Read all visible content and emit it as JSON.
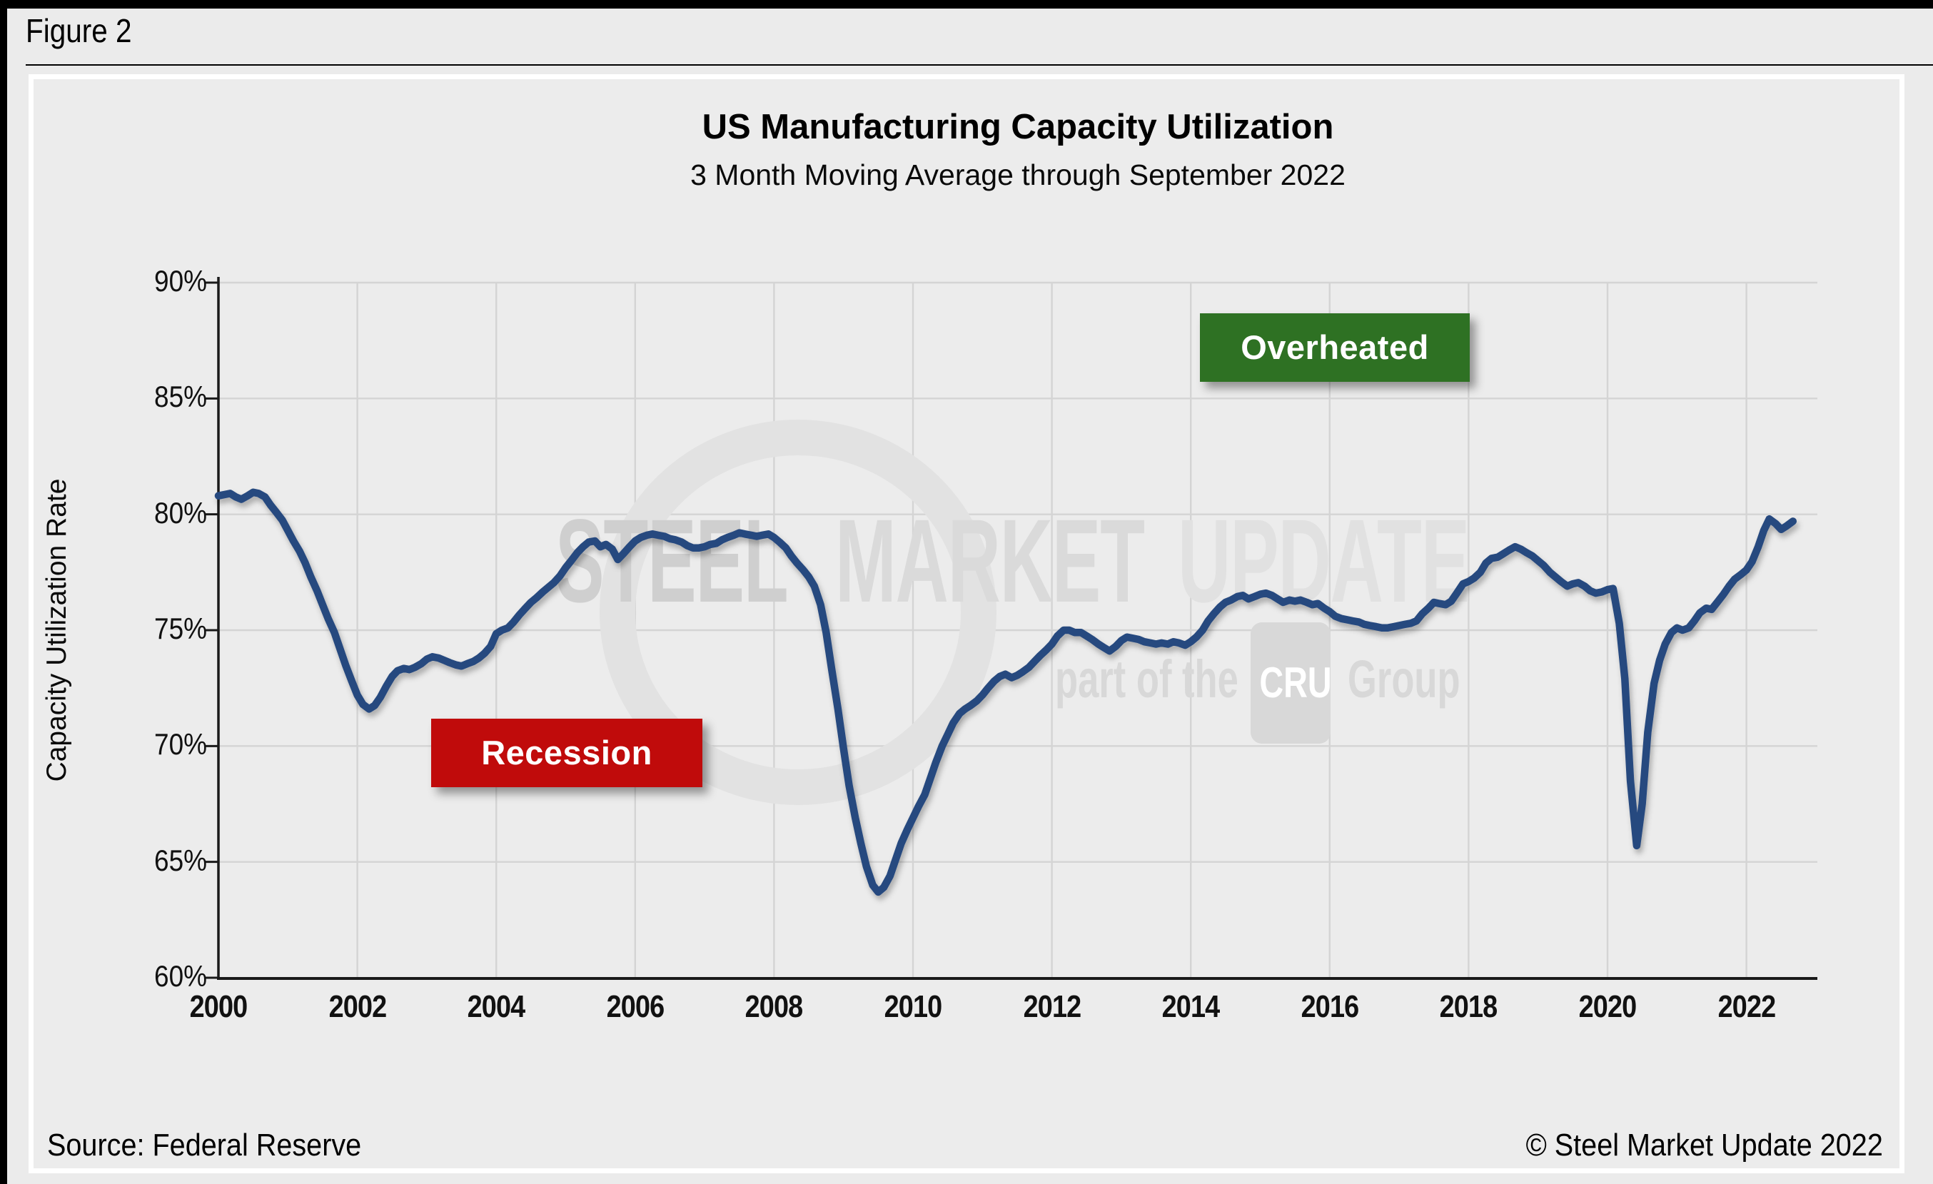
{
  "figure": {
    "label": "Figure 2"
  },
  "chart_data": {
    "type": "line",
    "title": "US Manufacturing Capacity Utilization",
    "subtitle": "3 Month Moving Average through September 2022",
    "ylabel": "Capacity Utilization Rate",
    "xlabel": "",
    "ylim": [
      60,
      90
    ],
    "xlim": [
      2000,
      2022.95
    ],
    "grid": true,
    "legend_position": "none",
    "y_ticks": [
      {
        "v": 90,
        "label": "90%"
      },
      {
        "v": 85,
        "label": "85%"
      },
      {
        "v": 80,
        "label": "80%"
      },
      {
        "v": 75,
        "label": "75%"
      },
      {
        "v": 70,
        "label": "70%"
      },
      {
        "v": 65,
        "label": "65%"
      },
      {
        "v": 60,
        "label": "60%"
      }
    ],
    "x_ticks": [
      2000,
      2002,
      2004,
      2006,
      2008,
      2010,
      2012,
      2014,
      2016,
      2018,
      2020,
      2022
    ],
    "reference_lines": [
      {
        "label": "Overheated",
        "value": 85.0,
        "color": "#2e7123"
      },
      {
        "label": "Recession",
        "value": 72.6,
        "color": "#c00b0b"
      }
    ],
    "series": [
      {
        "name": "3 Month Moving Average",
        "color": "#28497f",
        "points": [
          [
            2000.0,
            80.8
          ],
          [
            2000.08,
            80.85
          ],
          [
            2000.17,
            80.9
          ],
          [
            2000.25,
            80.75
          ],
          [
            2000.33,
            80.65
          ],
          [
            2000.42,
            80.8
          ],
          [
            2000.5,
            80.95
          ],
          [
            2000.58,
            80.9
          ],
          [
            2000.67,
            80.75
          ],
          [
            2000.75,
            80.4
          ],
          [
            2000.83,
            80.1
          ],
          [
            2000.92,
            79.75
          ],
          [
            2001.0,
            79.3
          ],
          [
            2001.08,
            78.85
          ],
          [
            2001.17,
            78.4
          ],
          [
            2001.25,
            77.9
          ],
          [
            2001.33,
            77.3
          ],
          [
            2001.42,
            76.7
          ],
          [
            2001.5,
            76.1
          ],
          [
            2001.58,
            75.5
          ],
          [
            2001.67,
            74.9
          ],
          [
            2001.75,
            74.2
          ],
          [
            2001.83,
            73.5
          ],
          [
            2001.92,
            72.8
          ],
          [
            2002.0,
            72.2
          ],
          [
            2002.08,
            71.8
          ],
          [
            2002.17,
            71.6
          ],
          [
            2002.25,
            71.75
          ],
          [
            2002.33,
            72.1
          ],
          [
            2002.42,
            72.6
          ],
          [
            2002.5,
            73.0
          ],
          [
            2002.58,
            73.25
          ],
          [
            2002.67,
            73.35
          ],
          [
            2002.75,
            73.3
          ],
          [
            2002.83,
            73.4
          ],
          [
            2002.92,
            73.55
          ],
          [
            2003.0,
            73.75
          ],
          [
            2003.08,
            73.85
          ],
          [
            2003.17,
            73.8
          ],
          [
            2003.25,
            73.7
          ],
          [
            2003.33,
            73.6
          ],
          [
            2003.42,
            73.5
          ],
          [
            2003.5,
            73.45
          ],
          [
            2003.58,
            73.55
          ],
          [
            2003.67,
            73.65
          ],
          [
            2003.75,
            73.8
          ],
          [
            2003.83,
            74.0
          ],
          [
            2003.92,
            74.3
          ],
          [
            2004.0,
            74.85
          ],
          [
            2004.08,
            75.0
          ],
          [
            2004.17,
            75.1
          ],
          [
            2004.25,
            75.35
          ],
          [
            2004.33,
            75.65
          ],
          [
            2004.42,
            75.95
          ],
          [
            2004.5,
            76.2
          ],
          [
            2004.58,
            76.4
          ],
          [
            2004.67,
            76.65
          ],
          [
            2004.75,
            76.85
          ],
          [
            2004.83,
            77.05
          ],
          [
            2004.92,
            77.35
          ],
          [
            2005.0,
            77.7
          ],
          [
            2005.08,
            78.0
          ],
          [
            2005.17,
            78.35
          ],
          [
            2005.25,
            78.6
          ],
          [
            2005.33,
            78.8
          ],
          [
            2005.42,
            78.85
          ],
          [
            2005.5,
            78.6
          ],
          [
            2005.58,
            78.7
          ],
          [
            2005.67,
            78.5
          ],
          [
            2005.75,
            78.05
          ],
          [
            2005.83,
            78.3
          ],
          [
            2005.92,
            78.6
          ],
          [
            2006.0,
            78.85
          ],
          [
            2006.08,
            79.0
          ],
          [
            2006.17,
            79.1
          ],
          [
            2006.25,
            79.15
          ],
          [
            2006.33,
            79.1
          ],
          [
            2006.42,
            79.05
          ],
          [
            2006.5,
            78.95
          ],
          [
            2006.58,
            78.9
          ],
          [
            2006.67,
            78.8
          ],
          [
            2006.75,
            78.65
          ],
          [
            2006.83,
            78.55
          ],
          [
            2006.92,
            78.55
          ],
          [
            2007.0,
            78.6
          ],
          [
            2007.08,
            78.7
          ],
          [
            2007.17,
            78.75
          ],
          [
            2007.25,
            78.9
          ],
          [
            2007.33,
            79.0
          ],
          [
            2007.42,
            79.1
          ],
          [
            2007.5,
            79.2
          ],
          [
            2007.58,
            79.15
          ],
          [
            2007.67,
            79.1
          ],
          [
            2007.75,
            79.05
          ],
          [
            2007.83,
            79.1
          ],
          [
            2007.92,
            79.15
          ],
          [
            2008.0,
            79.0
          ],
          [
            2008.08,
            78.8
          ],
          [
            2008.17,
            78.55
          ],
          [
            2008.25,
            78.2
          ],
          [
            2008.33,
            77.9
          ],
          [
            2008.42,
            77.6
          ],
          [
            2008.5,
            77.3
          ],
          [
            2008.58,
            76.9
          ],
          [
            2008.67,
            76.1
          ],
          [
            2008.75,
            74.9
          ],
          [
            2008.83,
            73.3
          ],
          [
            2008.92,
            71.6
          ],
          [
            2009.0,
            69.9
          ],
          [
            2009.08,
            68.3
          ],
          [
            2009.17,
            66.9
          ],
          [
            2009.25,
            65.8
          ],
          [
            2009.33,
            64.8
          ],
          [
            2009.42,
            64.0
          ],
          [
            2009.5,
            63.7
          ],
          [
            2009.58,
            63.9
          ],
          [
            2009.67,
            64.4
          ],
          [
            2009.75,
            65.1
          ],
          [
            2009.83,
            65.8
          ],
          [
            2009.92,
            66.4
          ],
          [
            2010.0,
            66.9
          ],
          [
            2010.08,
            67.4
          ],
          [
            2010.17,
            67.9
          ],
          [
            2010.25,
            68.6
          ],
          [
            2010.33,
            69.3
          ],
          [
            2010.42,
            70.0
          ],
          [
            2010.5,
            70.5
          ],
          [
            2010.58,
            71.0
          ],
          [
            2010.67,
            71.4
          ],
          [
            2010.75,
            71.6
          ],
          [
            2010.83,
            71.75
          ],
          [
            2010.92,
            71.95
          ],
          [
            2011.0,
            72.2
          ],
          [
            2011.08,
            72.5
          ],
          [
            2011.17,
            72.8
          ],
          [
            2011.25,
            73.0
          ],
          [
            2011.33,
            73.1
          ],
          [
            2011.42,
            72.95
          ],
          [
            2011.5,
            73.05
          ],
          [
            2011.58,
            73.2
          ],
          [
            2011.67,
            73.4
          ],
          [
            2011.75,
            73.65
          ],
          [
            2011.83,
            73.9
          ],
          [
            2011.92,
            74.15
          ],
          [
            2012.0,
            74.4
          ],
          [
            2012.08,
            74.75
          ],
          [
            2012.17,
            75.0
          ],
          [
            2012.25,
            75.0
          ],
          [
            2012.33,
            74.9
          ],
          [
            2012.42,
            74.9
          ],
          [
            2012.5,
            74.75
          ],
          [
            2012.58,
            74.6
          ],
          [
            2012.67,
            74.4
          ],
          [
            2012.75,
            74.25
          ],
          [
            2012.83,
            74.1
          ],
          [
            2012.92,
            74.3
          ],
          [
            2013.0,
            74.55
          ],
          [
            2013.08,
            74.7
          ],
          [
            2013.17,
            74.65
          ],
          [
            2013.25,
            74.6
          ],
          [
            2013.33,
            74.5
          ],
          [
            2013.42,
            74.45
          ],
          [
            2013.5,
            74.4
          ],
          [
            2013.58,
            74.45
          ],
          [
            2013.67,
            74.4
          ],
          [
            2013.75,
            74.5
          ],
          [
            2013.83,
            74.45
          ],
          [
            2013.92,
            74.35
          ],
          [
            2014.0,
            74.5
          ],
          [
            2014.08,
            74.7
          ],
          [
            2014.17,
            75.0
          ],
          [
            2014.25,
            75.4
          ],
          [
            2014.33,
            75.7
          ],
          [
            2014.42,
            76.0
          ],
          [
            2014.5,
            76.2
          ],
          [
            2014.58,
            76.3
          ],
          [
            2014.67,
            76.45
          ],
          [
            2014.75,
            76.5
          ],
          [
            2014.83,
            76.35
          ],
          [
            2014.92,
            76.45
          ],
          [
            2015.0,
            76.55
          ],
          [
            2015.08,
            76.6
          ],
          [
            2015.17,
            76.5
          ],
          [
            2015.25,
            76.35
          ],
          [
            2015.33,
            76.2
          ],
          [
            2015.42,
            76.3
          ],
          [
            2015.5,
            76.25
          ],
          [
            2015.58,
            76.3
          ],
          [
            2015.67,
            76.2
          ],
          [
            2015.75,
            76.1
          ],
          [
            2015.83,
            76.15
          ],
          [
            2015.92,
            75.95
          ],
          [
            2016.0,
            75.8
          ],
          [
            2016.08,
            75.6
          ],
          [
            2016.17,
            75.5
          ],
          [
            2016.25,
            75.45
          ],
          [
            2016.33,
            75.4
          ],
          [
            2016.42,
            75.35
          ],
          [
            2016.5,
            75.25
          ],
          [
            2016.58,
            75.2
          ],
          [
            2016.67,
            75.15
          ],
          [
            2016.75,
            75.1
          ],
          [
            2016.83,
            75.1
          ],
          [
            2016.92,
            75.15
          ],
          [
            2017.0,
            75.2
          ],
          [
            2017.08,
            75.25
          ],
          [
            2017.17,
            75.3
          ],
          [
            2017.25,
            75.4
          ],
          [
            2017.33,
            75.7
          ],
          [
            2017.42,
            75.95
          ],
          [
            2017.5,
            76.2
          ],
          [
            2017.58,
            76.15
          ],
          [
            2017.67,
            76.1
          ],
          [
            2017.75,
            76.25
          ],
          [
            2017.83,
            76.6
          ],
          [
            2017.92,
            77.0
          ],
          [
            2018.0,
            77.1
          ],
          [
            2018.08,
            77.25
          ],
          [
            2018.17,
            77.5
          ],
          [
            2018.25,
            77.9
          ],
          [
            2018.33,
            78.1
          ],
          [
            2018.42,
            78.15
          ],
          [
            2018.5,
            78.3
          ],
          [
            2018.58,
            78.45
          ],
          [
            2018.67,
            78.6
          ],
          [
            2018.75,
            78.5
          ],
          [
            2018.83,
            78.35
          ],
          [
            2018.92,
            78.2
          ],
          [
            2019.0,
            78.0
          ],
          [
            2019.08,
            77.8
          ],
          [
            2019.17,
            77.5
          ],
          [
            2019.25,
            77.3
          ],
          [
            2019.33,
            77.1
          ],
          [
            2019.42,
            76.9
          ],
          [
            2019.5,
            77.0
          ],
          [
            2019.58,
            77.05
          ],
          [
            2019.67,
            76.9
          ],
          [
            2019.75,
            76.7
          ],
          [
            2019.83,
            76.6
          ],
          [
            2019.92,
            76.65
          ],
          [
            2020.0,
            76.75
          ],
          [
            2020.08,
            76.8
          ],
          [
            2020.17,
            75.3
          ],
          [
            2020.25,
            72.9
          ],
          [
            2020.33,
            68.5
          ],
          [
            2020.42,
            65.7
          ],
          [
            2020.5,
            67.5
          ],
          [
            2020.58,
            70.6
          ],
          [
            2020.67,
            72.7
          ],
          [
            2020.75,
            73.7
          ],
          [
            2020.83,
            74.4
          ],
          [
            2020.92,
            74.9
          ],
          [
            2021.0,
            75.1
          ],
          [
            2021.08,
            75.0
          ],
          [
            2021.17,
            75.1
          ],
          [
            2021.25,
            75.4
          ],
          [
            2021.33,
            75.75
          ],
          [
            2021.42,
            75.95
          ],
          [
            2021.5,
            75.9
          ],
          [
            2021.58,
            76.2
          ],
          [
            2021.67,
            76.55
          ],
          [
            2021.75,
            76.9
          ],
          [
            2021.83,
            77.2
          ],
          [
            2021.92,
            77.4
          ],
          [
            2022.0,
            77.6
          ],
          [
            2022.08,
            77.95
          ],
          [
            2022.17,
            78.6
          ],
          [
            2022.25,
            79.3
          ],
          [
            2022.33,
            79.8
          ],
          [
            2022.42,
            79.6
          ],
          [
            2022.5,
            79.35
          ],
          [
            2022.58,
            79.5
          ],
          [
            2022.67,
            79.7
          ]
        ]
      }
    ]
  },
  "watermark": {
    "steel": "STEEL",
    "market": "MARKET",
    "update": "UPDATE",
    "part": "part of the",
    "cru": "CRU",
    "group": "Group"
  },
  "footer": {
    "source": "Source: Federal Reserve",
    "copyright": "© Steel Market Update 2022"
  }
}
